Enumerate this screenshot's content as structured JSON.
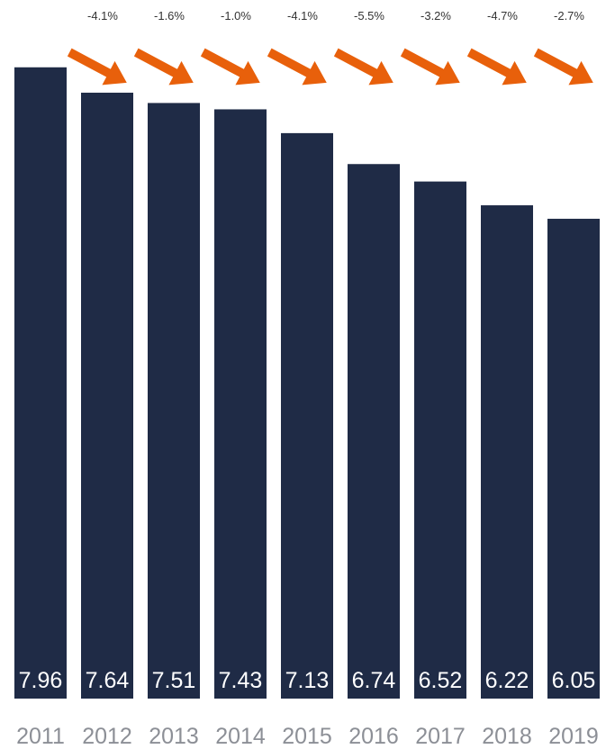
{
  "chart_data": {
    "type": "bar",
    "categories": [
      "2011",
      "2012",
      "2013",
      "2014",
      "2015",
      "2016",
      "2017",
      "2018",
      "2019"
    ],
    "values": [
      7.96,
      7.64,
      7.51,
      7.43,
      7.13,
      6.74,
      6.52,
      6.22,
      6.05
    ],
    "value_labels": [
      "7.96",
      "7.64",
      "7.51",
      "7.43",
      "7.13",
      "6.74",
      "6.52",
      "6.22",
      "6.05"
    ],
    "changes": [
      "-4.1%",
      "-1.6%",
      "-1.0%",
      "-4.1%",
      "-5.5%",
      "-3.2%",
      "-4.7%",
      "-2.7%"
    ],
    "title": "",
    "xlabel": "",
    "ylabel": "",
    "ylim": [
      0,
      8.4
    ],
    "grid": false,
    "legend": "none",
    "colors": {
      "bar": "#1f2b46",
      "arrow": "#e8600b",
      "value_label": "#ffffff",
      "category_label": "#8c8f96",
      "change_label": "#333333"
    }
  }
}
